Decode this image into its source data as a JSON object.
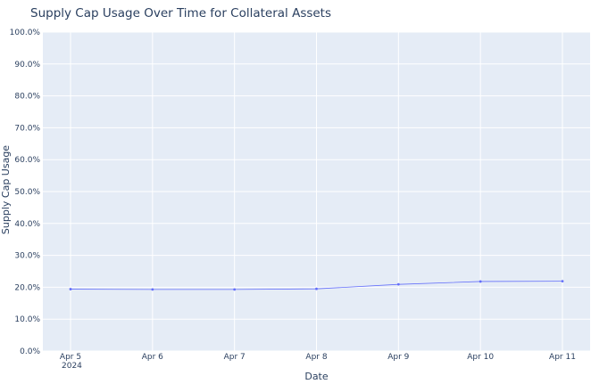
{
  "chart_data": {
    "type": "line",
    "title": "Supply Cap Usage Over Time for Collateral Assets",
    "xlabel": "Date",
    "ylabel": "Supply Cap Usage",
    "x": [
      "2024-04-05",
      "2024-04-06",
      "2024-04-07",
      "2024-04-08",
      "2024-04-09",
      "2024-04-10",
      "2024-04-11"
    ],
    "x_tick_labels": [
      "Apr 5",
      "Apr 6",
      "Apr 7",
      "Apr 8",
      "Apr 9",
      "Apr 10",
      "Apr 11"
    ],
    "x_year_label": "2024",
    "y_tick_labels": [
      "0.0%",
      "10.0%",
      "20.0%",
      "30.0%",
      "40.0%",
      "50.0%",
      "60.0%",
      "70.0%",
      "80.0%",
      "90.0%",
      "100.0%"
    ],
    "series": [
      {
        "values": [
          0.194,
          0.193,
          0.193,
          0.195,
          0.209,
          0.218,
          0.219
        ]
      }
    ],
    "ylim": [
      0,
      1
    ],
    "grid": true,
    "legend": "none",
    "colors": {
      "line": "#636efa",
      "plot_bg": "#e5ecf6",
      "grid": "#ffffff",
      "text": "#2a3f5f"
    }
  }
}
